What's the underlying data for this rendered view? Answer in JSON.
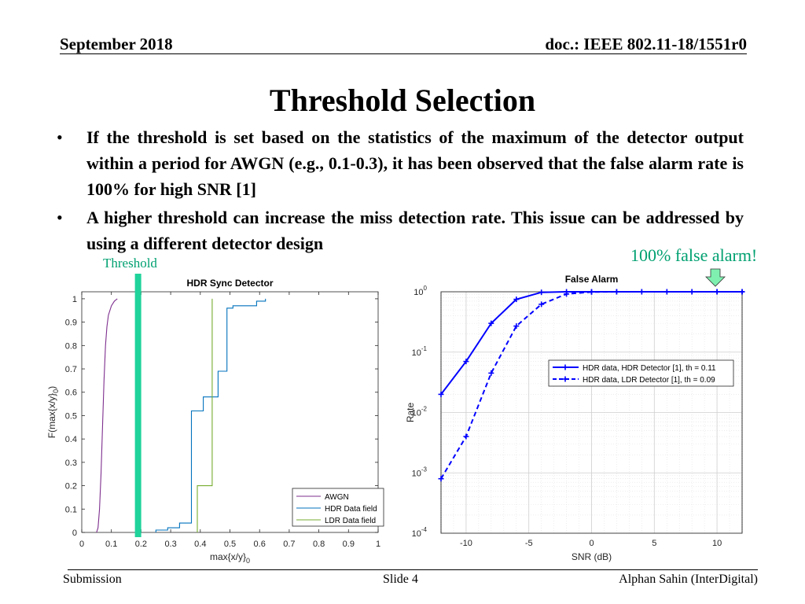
{
  "header": {
    "date": "September 2018",
    "doc": "doc.: IEEE 802.11-18/1551r0"
  },
  "title": "Threshold Selection",
  "bullets": [
    "If the threshold is set based on the statistics of the maximum of the detector output within a period for AWGN (e.g., 0.1-0.3), it has been observed that the false alarm rate is 100% for high SNR [1]",
    "A higher threshold can increase the miss detection rate. This issue can be addressed by using a different detector design"
  ],
  "annotations": {
    "threshold": "Threshold",
    "false_alarm": "100% false alarm!"
  },
  "colors": {
    "awgn": "#7e2f8e",
    "hdr": "#0072bd",
    "ldr": "#77ac30",
    "threshold_bar": "#1fd39a",
    "rate_line": "#0000ff",
    "arrow": "#7ff0b0"
  },
  "chart_data": [
    {
      "type": "line",
      "title": "HDR Sync Detector",
      "xlabel": "max{x/y}",
      "xlabel_sub": "0",
      "ylabel": "F(max{x/y}",
      "ylabel_sub": "0",
      "ylabel_end": ")",
      "xlim": [
        0,
        1
      ],
      "ylim": [
        0,
        1.03
      ],
      "xticks": [
        "0",
        "0.1",
        "0.2",
        "0.3",
        "0.4",
        "0.5",
        "0.6",
        "0.7",
        "0.8",
        "0.9",
        "1"
      ],
      "yticks": [
        "0",
        "0.1",
        "0.2",
        "0.3",
        "0.4",
        "0.5",
        "0.6",
        "0.7",
        "0.8",
        "0.9",
        "1"
      ],
      "threshold_x": 0.19,
      "legend_position": "bottom-right",
      "series": [
        {
          "name": "AWGN",
          "points": [
            [
              0.05,
              0
            ],
            [
              0.055,
              0.02
            ],
            [
              0.06,
              0.1
            ],
            [
              0.065,
              0.25
            ],
            [
              0.07,
              0.45
            ],
            [
              0.075,
              0.65
            ],
            [
              0.08,
              0.8
            ],
            [
              0.085,
              0.88
            ],
            [
              0.09,
              0.93
            ],
            [
              0.1,
              0.97
            ],
            [
              0.11,
              0.99
            ],
            [
              0.12,
              1.0
            ]
          ]
        },
        {
          "name": "HDR Data field",
          "points": [
            [
              0.25,
              0
            ],
            [
              0.25,
              0.01
            ],
            [
              0.29,
              0.01
            ],
            [
              0.29,
              0.02
            ],
            [
              0.33,
              0.02
            ],
            [
              0.33,
              0.04
            ],
            [
              0.37,
              0.04
            ],
            [
              0.37,
              0.52
            ],
            [
              0.41,
              0.52
            ],
            [
              0.41,
              0.58
            ],
            [
              0.46,
              0.58
            ],
            [
              0.46,
              0.69
            ],
            [
              0.49,
              0.69
            ],
            [
              0.49,
              0.96
            ],
            [
              0.51,
              0.96
            ],
            [
              0.51,
              0.97
            ],
            [
              0.59,
              0.97
            ],
            [
              0.59,
              0.99
            ],
            [
              0.62,
              0.99
            ],
            [
              0.62,
              1.0
            ]
          ]
        },
        {
          "name": "LDR Data field",
          "points": [
            [
              0.39,
              0
            ],
            [
              0.39,
              0.2
            ],
            [
              0.44,
              0.2
            ],
            [
              0.44,
              1.0
            ]
          ]
        }
      ]
    },
    {
      "type": "line",
      "title": "False Alarm",
      "xlabel": "SNR (dB)",
      "ylabel": "Rate",
      "yscale": "log",
      "xlim": [
        -12,
        12
      ],
      "ylim_exponents": [
        -4,
        0
      ],
      "xticks": [
        -10,
        -5,
        0,
        5,
        10
      ],
      "yticks": [
        {
          "base": "10",
          "exp": "0",
          "value": 1
        },
        {
          "base": "10",
          "exp": "-1",
          "value": 0.1
        },
        {
          "base": "10",
          "exp": "-2",
          "value": 0.01
        },
        {
          "base": "10",
          "exp": "-3",
          "value": 0.001
        },
        {
          "base": "10",
          "exp": "-4",
          "value": 0.0001
        }
      ],
      "legend_position": "top-right",
      "x": [
        -12,
        -10,
        -8,
        -6,
        -4,
        -2,
        0,
        2,
        4,
        6,
        8,
        10,
        12
      ],
      "series": [
        {
          "name": "HDR data, HDR Detector [1],  th = 0.11",
          "style": "solid",
          "values": [
            0.02,
            0.07,
            0.3,
            0.75,
            0.98,
            1,
            1,
            1,
            1,
            1,
            1,
            1,
            1
          ]
        },
        {
          "name": "HDR data, LDR Detector [1],  th = 0.09",
          "style": "dashed",
          "values": [
            0.0008,
            0.004,
            0.045,
            0.27,
            0.62,
            0.92,
            0.99,
            1,
            1,
            1,
            1,
            1,
            1
          ]
        }
      ]
    }
  ],
  "footer": {
    "left": "Submission",
    "center": "Slide 4",
    "right": "Alphan Sahin (InterDigital)"
  }
}
